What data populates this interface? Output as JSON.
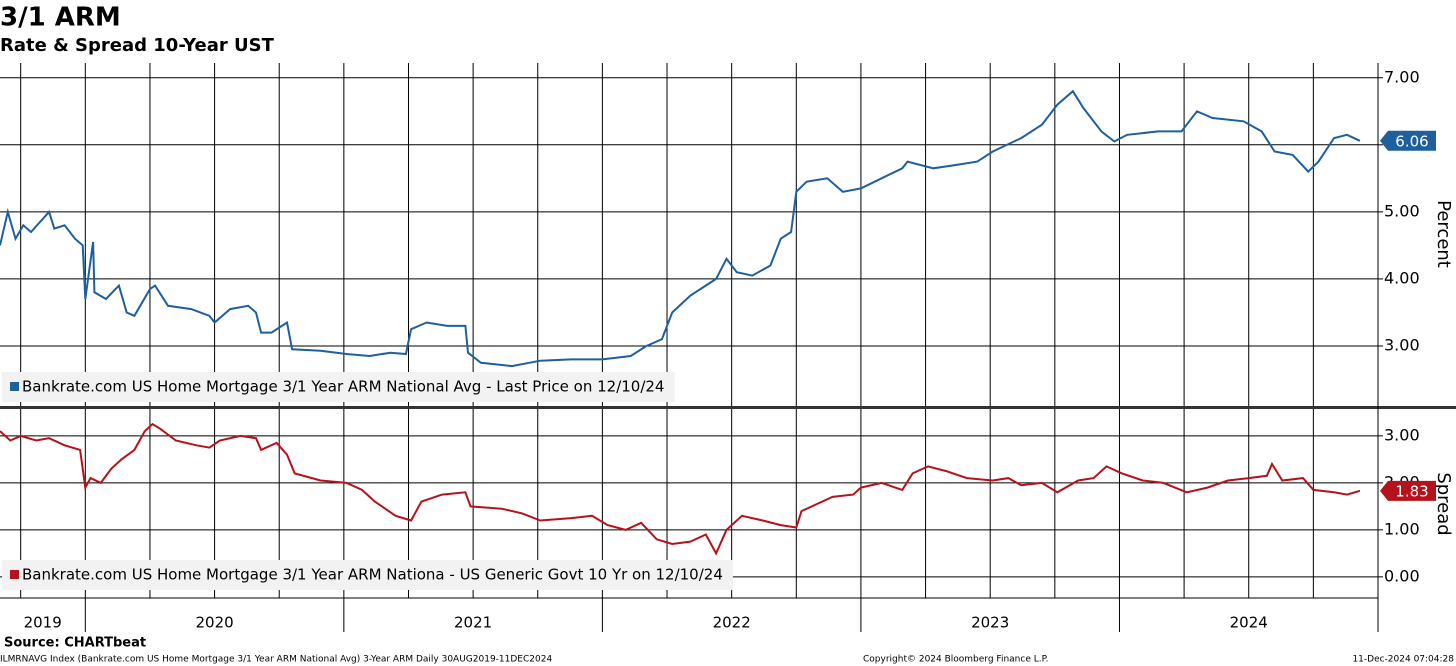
{
  "title": "3/1 ARM",
  "subtitle": "Rate & Spread 10-Year UST",
  "source": "Source: CHARTbeat",
  "footer_left": "ILMRNAVG Index (Bankrate.com US Home Mortgage 3/1 Year ARM National Avg) 3-Year ARM  Daily 30AUG2019-11DEC2024",
  "footer_mid": "Copyright© 2024 Bloomberg Finance L.P.",
  "footer_right": "11-Dec-2024 07:04:28",
  "x_axis": {
    "xlim": [
      2019.67,
      2025.0
    ],
    "xticks": [
      2019.75,
      2020,
      2020.25,
      2020.5,
      2020.75,
      2021,
      2021.25,
      2021.5,
      2021.75,
      2022,
      2022.25,
      2022.5,
      2022.75,
      2023,
      2023.25,
      2023.5,
      2023.75,
      2024,
      2024.25,
      2024.5,
      2024.75,
      2025
    ],
    "year_labels": [
      {
        "value": 2019.835,
        "label": "2019"
      },
      {
        "value": 2020.5,
        "label": "2020"
      },
      {
        "value": 2021.5,
        "label": "2021"
      },
      {
        "value": 2022.5,
        "label": "2022"
      },
      {
        "value": 2023.5,
        "label": "2023"
      },
      {
        "value": 2024.5,
        "label": "2024"
      }
    ]
  },
  "chart_data": [
    {
      "type": "line",
      "y_label": "Percent",
      "ylim": [
        2.12,
        7.22
      ],
      "yticks": [
        {
          "value": 3,
          "label": "3.00"
        },
        {
          "value": 4,
          "label": "4.00"
        },
        {
          "value": 5,
          "label": "5.00"
        },
        {
          "value": 6,
          "label": "6.00"
        },
        {
          "value": 7,
          "label": "7.00"
        }
      ],
      "grid": true,
      "series": [
        {
          "name": "Bankrate.com US Home Mortgage 3/1 Year ARM National Avg - Last Price on 12/10/24",
          "color": "#1f5f9e",
          "x": [
            2019.67,
            2019.7,
            2019.73,
            2019.76,
            2019.79,
            2019.86,
            2019.88,
            2019.92,
            2019.96,
            2019.99,
            2020.0,
            2020.03,
            2020.035,
            2020.08,
            2020.13,
            2020.16,
            2020.19,
            2020.25,
            2020.27,
            2020.32,
            2020.41,
            2020.48,
            2020.5,
            2020.56,
            2020.63,
            2020.66,
            2020.68,
            2020.72,
            2020.78,
            2020.8,
            2020.91,
            2021.01,
            2021.1,
            2021.18,
            2021.24,
            2021.26,
            2021.32,
            2021.4,
            2021.47,
            2021.48,
            2021.53,
            2021.65,
            2021.76,
            2021.88,
            2022.0,
            2022.11,
            2022.17,
            2022.23,
            2022.27,
            2022.34,
            2022.44,
            2022.48,
            2022.52,
            2022.58,
            2022.65,
            2022.69,
            2022.73,
            2022.75,
            2022.79,
            2022.87,
            2022.93,
            2023.0,
            2023.08,
            2023.16,
            2023.18,
            2023.28,
            2023.37,
            2023.45,
            2023.51,
            2023.62,
            2023.7,
            2023.76,
            2023.82,
            2023.86,
            2023.93,
            2023.98,
            2024.03,
            2024.15,
            2024.24,
            2024.3,
            2024.36,
            2024.48,
            2024.55,
            2024.6,
            2024.67,
            2024.73,
            2024.77,
            2024.83,
            2024.88,
            2024.93
          ],
          "values": [
            4.5,
            5.0,
            4.6,
            4.8,
            4.7,
            5.0,
            4.75,
            4.8,
            4.6,
            4.5,
            3.7,
            4.55,
            3.8,
            3.7,
            3.9,
            3.5,
            3.45,
            3.85,
            3.9,
            3.6,
            3.55,
            3.45,
            3.35,
            3.55,
            3.6,
            3.5,
            3.2,
            3.2,
            3.35,
            2.95,
            2.93,
            2.88,
            2.85,
            2.9,
            2.88,
            3.25,
            3.35,
            3.3,
            3.3,
            2.9,
            2.75,
            2.7,
            2.78,
            2.8,
            2.8,
            2.85,
            3.0,
            3.1,
            3.5,
            3.75,
            4.0,
            4.3,
            4.1,
            4.05,
            4.2,
            4.6,
            4.7,
            5.3,
            5.45,
            5.5,
            5.3,
            5.35,
            5.5,
            5.65,
            5.75,
            5.65,
            5.7,
            5.75,
            5.9,
            6.1,
            6.3,
            6.6,
            6.8,
            6.55,
            6.2,
            6.05,
            6.15,
            6.2,
            6.2,
            6.5,
            6.4,
            6.35,
            6.2,
            5.9,
            5.85,
            5.6,
            5.75,
            6.1,
            6.15,
            6.06
          ]
        }
      ]
    },
    {
      "type": "line",
      "y_label": "Spread",
      "ylim": [
        -0.45,
        3.55
      ],
      "yticks": [
        {
          "value": 0,
          "label": "0.00"
        },
        {
          "value": 1,
          "label": "1.00"
        },
        {
          "value": 2,
          "label": "2.00"
        },
        {
          "value": 3,
          "label": "3.00"
        }
      ],
      "grid": true,
      "series": [
        {
          "name": "Bankrate.com US Home Mortgage 3/1 Year ARM Nationa - US Generic Govt 10 Yr on 12/10/24",
          "color": "#b5121b",
          "x": [
            2019.67,
            2019.71,
            2019.75,
            2019.81,
            2019.86,
            2019.92,
            2019.98,
            2020.0,
            2020.02,
            2020.06,
            2020.1,
            2020.14,
            2020.19,
            2020.23,
            2020.26,
            2020.29,
            2020.35,
            2020.43,
            2020.48,
            2020.52,
            2020.6,
            2020.66,
            2020.68,
            2020.74,
            2020.78,
            2020.81,
            2020.91,
            2021.01,
            2021.07,
            2021.12,
            2021.2,
            2021.26,
            2021.3,
            2021.38,
            2021.47,
            2021.49,
            2021.61,
            2021.69,
            2021.76,
            2021.88,
            2021.96,
            2022.02,
            2022.09,
            2022.15,
            2022.21,
            2022.27,
            2022.34,
            2022.4,
            2022.44,
            2022.48,
            2022.54,
            2022.62,
            2022.69,
            2022.75,
            2022.77,
            2022.83,
            2022.89,
            2022.97,
            2023.0,
            2023.08,
            2023.16,
            2023.2,
            2023.26,
            2023.33,
            2023.41,
            2023.51,
            2023.57,
            2023.62,
            2023.7,
            2023.76,
            2023.84,
            2023.9,
            2023.95,
            2024.01,
            2024.09,
            2024.17,
            2024.26,
            2024.34,
            2024.42,
            2024.5,
            2024.57,
            2024.59,
            2024.63,
            2024.71,
            2024.75,
            2024.83,
            2024.88,
            2024.93
          ],
          "values": [
            3.1,
            2.9,
            3.0,
            2.9,
            2.95,
            2.8,
            2.7,
            1.9,
            2.1,
            2.0,
            2.3,
            2.5,
            2.7,
            3.1,
            3.25,
            3.15,
            2.9,
            2.8,
            2.75,
            2.9,
            3.0,
            2.95,
            2.7,
            2.85,
            2.6,
            2.2,
            2.05,
            2.0,
            1.85,
            1.6,
            1.3,
            1.2,
            1.6,
            1.75,
            1.8,
            1.5,
            1.45,
            1.35,
            1.2,
            1.25,
            1.3,
            1.1,
            1.0,
            1.15,
            0.8,
            0.7,
            0.75,
            0.9,
            0.5,
            1.0,
            1.3,
            1.2,
            1.1,
            1.05,
            1.4,
            1.55,
            1.7,
            1.75,
            1.9,
            2.0,
            1.85,
            2.2,
            2.35,
            2.25,
            2.1,
            2.05,
            2.1,
            1.95,
            2.0,
            1.8,
            2.05,
            2.1,
            2.35,
            2.2,
            2.05,
            2.0,
            1.8,
            1.9,
            2.05,
            2.1,
            2.15,
            2.4,
            2.05,
            2.1,
            1.85,
            1.8,
            1.75,
            1.83
          ]
        }
      ]
    }
  ]
}
